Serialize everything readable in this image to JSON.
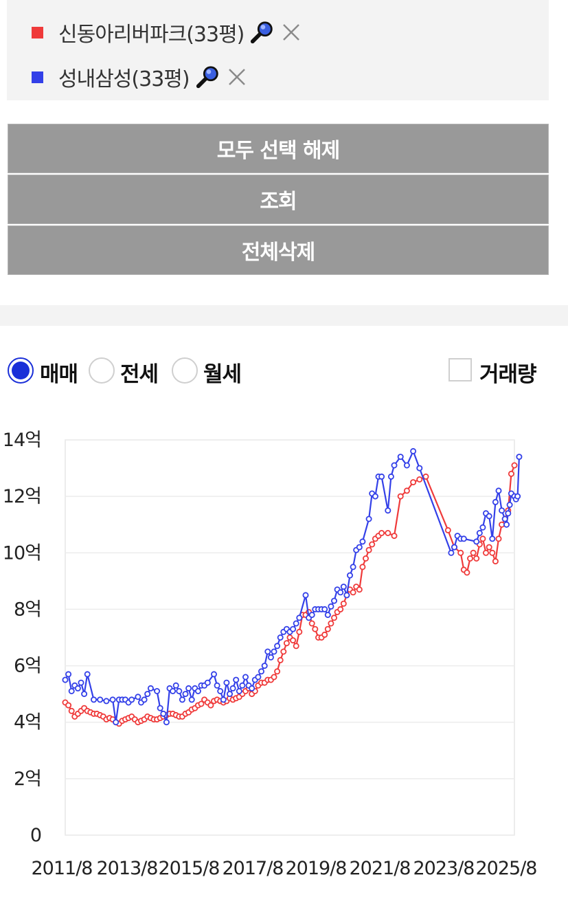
{
  "legend": {
    "items": [
      {
        "label": "신동아리버파크(33평)",
        "color": "#ef3a3a"
      },
      {
        "label": "성내삼성(33평)",
        "color": "#3340e8"
      }
    ],
    "search_icon": "magnifier-icon",
    "remove_icon": "close-icon"
  },
  "buttons": {
    "deselect_all": "모두 선택 해제",
    "query": "조회",
    "delete_all": "전체삭제"
  },
  "trade_types": {
    "options": [
      {
        "label": "매매",
        "selected": true
      },
      {
        "label": "전세",
        "selected": false
      },
      {
        "label": "월세",
        "selected": false
      }
    ],
    "volume_label": "거래량",
    "volume_checked": false
  },
  "chart_data": {
    "type": "line",
    "y_ticks": [
      "0",
      "2억",
      "4억",
      "6억",
      "8억",
      "10억",
      "12억",
      "14억"
    ],
    "x_ticks": [
      "2011/8",
      "2013/8",
      "2015/8",
      "2017/8",
      "2019/8",
      "2021/8",
      "2023/8",
      "2025/8"
    ],
    "xlim": [
      2011.6,
      2025.8
    ],
    "ylim": [
      0,
      14
    ],
    "grid": true,
    "series": [
      {
        "name": "신동아리버파크(33평)",
        "color": "#ef3a3a",
        "points": [
          [
            2011.6,
            4.7
          ],
          [
            2011.7,
            4.6
          ],
          [
            2011.8,
            4.4
          ],
          [
            2011.9,
            4.2
          ],
          [
            2012.0,
            4.3
          ],
          [
            2012.1,
            4.4
          ],
          [
            2012.2,
            4.5
          ],
          [
            2012.3,
            4.4
          ],
          [
            2012.4,
            4.35
          ],
          [
            2012.5,
            4.3
          ],
          [
            2012.6,
            4.3
          ],
          [
            2012.7,
            4.25
          ],
          [
            2012.8,
            4.2
          ],
          [
            2012.9,
            4.1
          ],
          [
            2013.0,
            4.15
          ],
          [
            2013.1,
            4.1
          ],
          [
            2013.2,
            4.0
          ],
          [
            2013.3,
            3.95
          ],
          [
            2013.4,
            4.05
          ],
          [
            2013.5,
            4.1
          ],
          [
            2013.6,
            4.15
          ],
          [
            2013.7,
            4.2
          ],
          [
            2013.8,
            4.1
          ],
          [
            2013.9,
            4.0
          ],
          [
            2014.0,
            4.05
          ],
          [
            2014.1,
            4.1
          ],
          [
            2014.2,
            4.2
          ],
          [
            2014.3,
            4.15
          ],
          [
            2014.4,
            4.1
          ],
          [
            2014.5,
            4.1
          ],
          [
            2014.6,
            4.15
          ],
          [
            2014.7,
            4.2
          ],
          [
            2014.8,
            4.25
          ],
          [
            2014.9,
            4.3
          ],
          [
            2015.0,
            4.3
          ],
          [
            2015.1,
            4.25
          ],
          [
            2015.2,
            4.2
          ],
          [
            2015.3,
            4.2
          ],
          [
            2015.4,
            4.3
          ],
          [
            2015.5,
            4.35
          ],
          [
            2015.6,
            4.45
          ],
          [
            2015.7,
            4.5
          ],
          [
            2015.8,
            4.6
          ],
          [
            2015.9,
            4.65
          ],
          [
            2016.0,
            4.8
          ],
          [
            2016.1,
            4.7
          ],
          [
            2016.2,
            4.6
          ],
          [
            2016.3,
            4.75
          ],
          [
            2016.4,
            4.8
          ],
          [
            2016.5,
            4.75
          ],
          [
            2016.6,
            4.7
          ],
          [
            2016.7,
            4.75
          ],
          [
            2016.8,
            4.85
          ],
          [
            2016.9,
            4.8
          ],
          [
            2017.0,
            4.85
          ],
          [
            2017.1,
            4.9
          ],
          [
            2017.2,
            5.0
          ],
          [
            2017.3,
            5.1
          ],
          [
            2017.4,
            5.2
          ],
          [
            2017.5,
            5.0
          ],
          [
            2017.6,
            5.1
          ],
          [
            2017.7,
            5.3
          ],
          [
            2017.8,
            5.4
          ],
          [
            2017.9,
            5.4
          ],
          [
            2018.0,
            5.5
          ],
          [
            2018.1,
            5.5
          ],
          [
            2018.2,
            5.6
          ],
          [
            2018.3,
            5.8
          ],
          [
            2018.4,
            6.2
          ],
          [
            2018.5,
            6.5
          ],
          [
            2018.6,
            6.8
          ],
          [
            2018.7,
            7.0
          ],
          [
            2018.8,
            6.9
          ],
          [
            2018.9,
            6.7
          ],
          [
            2019.0,
            7.2
          ],
          [
            2019.1,
            7.8
          ],
          [
            2019.2,
            7.8
          ],
          [
            2019.3,
            7.9
          ],
          [
            2019.4,
            7.5
          ],
          [
            2019.5,
            7.3
          ],
          [
            2019.6,
            7.0
          ],
          [
            2019.7,
            7.0
          ],
          [
            2019.8,
            7.1
          ],
          [
            2019.9,
            7.3
          ],
          [
            2020.0,
            7.5
          ],
          [
            2020.1,
            7.7
          ],
          [
            2020.2,
            7.9
          ],
          [
            2020.3,
            8.0
          ],
          [
            2020.4,
            8.2
          ],
          [
            2020.5,
            8.5
          ],
          [
            2020.6,
            8.7
          ],
          [
            2020.7,
            8.6
          ],
          [
            2020.8,
            8.8
          ],
          [
            2020.9,
            8.7
          ],
          [
            2021.0,
            9.5
          ],
          [
            2021.1,
            9.8
          ],
          [
            2021.2,
            10.1
          ],
          [
            2021.3,
            10.3
          ],
          [
            2021.4,
            10.5
          ],
          [
            2021.5,
            10.6
          ],
          [
            2021.6,
            10.7
          ],
          [
            2021.8,
            10.7
          ],
          [
            2022.0,
            10.6
          ],
          [
            2022.2,
            12.0
          ],
          [
            2022.4,
            12.2
          ],
          [
            2022.6,
            12.5
          ],
          [
            2022.8,
            12.6
          ],
          [
            2023.0,
            12.7
          ],
          [
            2023.7,
            10.8
          ],
          [
            2023.9,
            10.2
          ],
          [
            2024.1,
            10.0
          ],
          [
            2024.2,
            9.4
          ],
          [
            2024.3,
            9.3
          ],
          [
            2024.4,
            9.8
          ],
          [
            2024.5,
            10.0
          ],
          [
            2024.6,
            9.8
          ],
          [
            2024.7,
            10.3
          ],
          [
            2024.8,
            10.5
          ],
          [
            2024.9,
            10.0
          ],
          [
            2025.0,
            10.2
          ],
          [
            2025.1,
            10.0
          ],
          [
            2025.2,
            9.7
          ],
          [
            2025.3,
            10.5
          ],
          [
            2025.4,
            11.0
          ],
          [
            2025.5,
            11.2
          ],
          [
            2025.6,
            11.5
          ],
          [
            2025.7,
            12.8
          ],
          [
            2025.8,
            13.1
          ]
        ]
      },
      {
        "name": "성내삼성(33평)",
        "color": "#3340e8",
        "points": [
          [
            2011.6,
            5.5
          ],
          [
            2011.7,
            5.7
          ],
          [
            2011.8,
            5.1
          ],
          [
            2011.9,
            5.3
          ],
          [
            2012.0,
            5.2
          ],
          [
            2012.1,
            5.4
          ],
          [
            2012.2,
            5.0
          ],
          [
            2012.3,
            5.7
          ],
          [
            2012.5,
            4.8
          ],
          [
            2012.7,
            4.8
          ],
          [
            2012.9,
            4.75
          ],
          [
            2013.1,
            4.8
          ],
          [
            2013.2,
            4.0
          ],
          [
            2013.3,
            4.8
          ],
          [
            2013.4,
            4.8
          ],
          [
            2013.5,
            4.8
          ],
          [
            2013.6,
            4.7
          ],
          [
            2013.7,
            4.8
          ],
          [
            2013.9,
            4.9
          ],
          [
            2014.0,
            4.7
          ],
          [
            2014.1,
            4.8
          ],
          [
            2014.2,
            5.0
          ],
          [
            2014.3,
            5.2
          ],
          [
            2014.5,
            5.1
          ],
          [
            2014.6,
            4.5
          ],
          [
            2014.7,
            4.3
          ],
          [
            2014.8,
            4.0
          ],
          [
            2014.9,
            5.2
          ],
          [
            2015.0,
            5.1
          ],
          [
            2015.1,
            5.3
          ],
          [
            2015.2,
            5.1
          ],
          [
            2015.3,
            4.8
          ],
          [
            2015.4,
            5.0
          ],
          [
            2015.5,
            5.2
          ],
          [
            2015.6,
            4.8
          ],
          [
            2015.7,
            5.2
          ],
          [
            2015.8,
            5.1
          ],
          [
            2015.9,
            5.3
          ],
          [
            2016.0,
            5.3
          ],
          [
            2016.1,
            5.4
          ],
          [
            2016.3,
            5.7
          ],
          [
            2016.4,
            5.3
          ],
          [
            2016.5,
            5.1
          ],
          [
            2016.6,
            4.8
          ],
          [
            2016.7,
            5.4
          ],
          [
            2016.8,
            5.0
          ],
          [
            2016.9,
            5.2
          ],
          [
            2017.0,
            5.5
          ],
          [
            2017.1,
            5.1
          ],
          [
            2017.2,
            5.3
          ],
          [
            2017.3,
            5.6
          ],
          [
            2017.4,
            5.3
          ],
          [
            2017.5,
            5.2
          ],
          [
            2017.6,
            5.5
          ],
          [
            2017.7,
            5.6
          ],
          [
            2017.8,
            5.8
          ],
          [
            2017.9,
            6.0
          ],
          [
            2018.0,
            6.5
          ],
          [
            2018.1,
            6.3
          ],
          [
            2018.2,
            6.5
          ],
          [
            2018.3,
            6.7
          ],
          [
            2018.4,
            7.0
          ],
          [
            2018.5,
            7.2
          ],
          [
            2018.6,
            7.3
          ],
          [
            2018.7,
            7.2
          ],
          [
            2018.8,
            7.3
          ],
          [
            2018.9,
            7.5
          ],
          [
            2019.0,
            7.7
          ],
          [
            2019.2,
            8.5
          ],
          [
            2019.3,
            7.7
          ],
          [
            2019.4,
            7.8
          ],
          [
            2019.5,
            8.0
          ],
          [
            2019.6,
            8.0
          ],
          [
            2019.7,
            8.0
          ],
          [
            2019.8,
            8.0
          ],
          [
            2019.9,
            7.8
          ],
          [
            2020.0,
            8.1
          ],
          [
            2020.1,
            8.3
          ],
          [
            2020.2,
            8.7
          ],
          [
            2020.3,
            8.6
          ],
          [
            2020.4,
            8.8
          ],
          [
            2020.5,
            8.5
          ],
          [
            2020.6,
            9.2
          ],
          [
            2020.7,
            9.5
          ],
          [
            2020.8,
            10.1
          ],
          [
            2020.9,
            10.2
          ],
          [
            2021.0,
            10.4
          ],
          [
            2021.2,
            11.2
          ],
          [
            2021.3,
            12.1
          ],
          [
            2021.4,
            12.0
          ],
          [
            2021.5,
            12.7
          ],
          [
            2021.6,
            12.7
          ],
          [
            2021.8,
            11.5
          ],
          [
            2021.9,
            12.7
          ],
          [
            2022.0,
            13.1
          ],
          [
            2022.2,
            13.4
          ],
          [
            2022.4,
            13.1
          ],
          [
            2022.6,
            13.6
          ],
          [
            2022.8,
            13.0
          ],
          [
            2023.8,
            10.0
          ],
          [
            2023.9,
            10.2
          ],
          [
            2024.0,
            10.6
          ],
          [
            2024.1,
            10.5
          ],
          [
            2024.2,
            10.5
          ],
          [
            2024.6,
            10.4
          ],
          [
            2024.7,
            10.7
          ],
          [
            2024.8,
            10.9
          ],
          [
            2024.9,
            11.4
          ],
          [
            2025.0,
            11.3
          ],
          [
            2025.1,
            10.5
          ],
          [
            2025.2,
            11.8
          ],
          [
            2025.3,
            12.2
          ],
          [
            2025.4,
            11.5
          ],
          [
            2025.5,
            11.2
          ],
          [
            2025.55,
            11.0
          ],
          [
            2025.6,
            11.4
          ],
          [
            2025.65,
            11.7
          ],
          [
            2025.7,
            12.1
          ],
          [
            2025.8,
            12.0
          ],
          [
            2025.85,
            11.9
          ],
          [
            2025.9,
            12.0
          ],
          [
            2025.95,
            13.4
          ]
        ]
      }
    ]
  }
}
